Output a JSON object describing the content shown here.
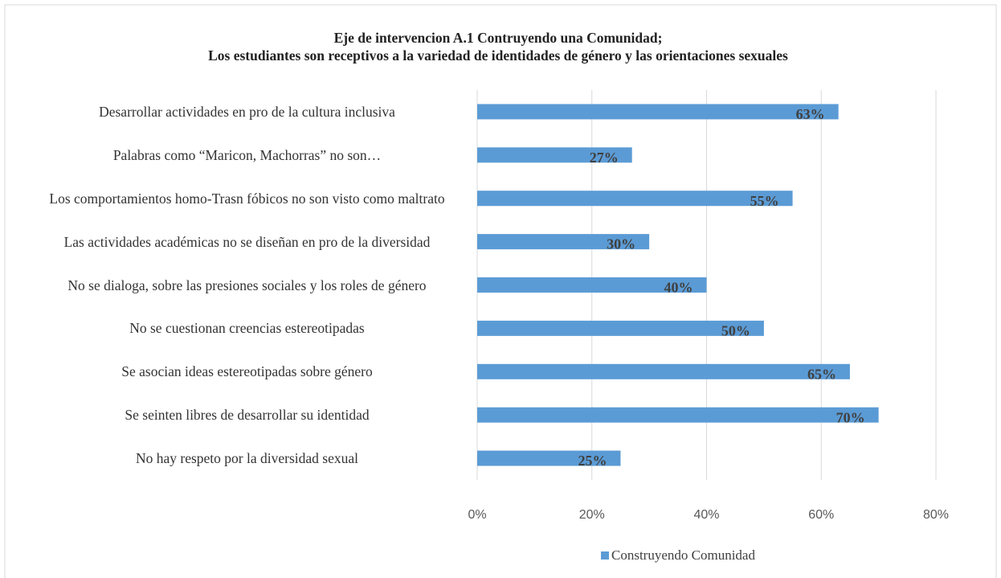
{
  "chart_data": {
    "type": "barh",
    "title": "Eje de intervencion A.1 Contruyendo una Comunidad;",
    "subtitle": "Los estudiantes son receptivos a la variedad de identidades de género y  las orientaciones sexuales",
    "categories": [
      "Desarrollar actividades en pro de la cultura inclusiva",
      "Palabras como “Maricon, Machorras” no son…",
      "Los comportamientos homo-Trasn fóbicos no son visto como maltrato",
      "Las actividades académicas no se diseñan en pro de la diversidad",
      "No se dialoga, sobre las presiones sociales y los roles de género",
      "No se cuestionan creencias estereotipadas",
      "Se asocian ideas estereotipadas sobre género",
      "Se seinten libres de desarrollar su identidad",
      "No hay respeto por la diversidad sexual"
    ],
    "series": [
      {
        "name": "Construyendo Comunidad",
        "color": "#5b9bd5",
        "values": [
          63,
          27,
          55,
          30,
          40,
          50,
          65,
          70,
          25
        ],
        "value_labels": [
          "63%",
          "27%",
          "55%",
          "30%",
          "40%",
          "50%",
          "65%",
          "70%",
          "25%"
        ]
      }
    ],
    "xlim": [
      0,
      80
    ],
    "xticks": [
      {
        "value": 0,
        "label": "0%"
      },
      {
        "value": 20,
        "label": "20%"
      },
      {
        "value": 40,
        "label": "40%"
      },
      {
        "value": 60,
        "label": "60%"
      },
      {
        "value": 80,
        "label": "80%"
      }
    ],
    "grid": true,
    "legend": "bottom"
  }
}
